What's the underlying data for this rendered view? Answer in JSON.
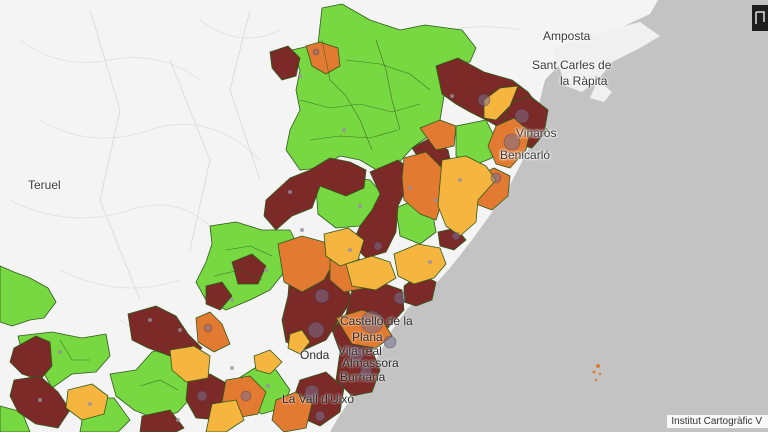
{
  "map": {
    "places": [
      {
        "id": "amposta",
        "label": "Amposta"
      },
      {
        "id": "santcarles1",
        "label": "Sant Carles de"
      },
      {
        "id": "santcarles2",
        "label": "la Ràpita"
      },
      {
        "id": "vinaros",
        "label": "Vinaròs"
      },
      {
        "id": "benicarlo",
        "label": "Benicarló"
      },
      {
        "id": "teruel",
        "label": "Teruel"
      },
      {
        "id": "castello1",
        "label": "Castelló de la"
      },
      {
        "id": "castello2",
        "label": "Plana"
      },
      {
        "id": "onda",
        "label": "Onda"
      },
      {
        "id": "vilareal1",
        "label": "Vila-real"
      },
      {
        "id": "almassora",
        "label": "Almassora"
      },
      {
        "id": "burriana",
        "label": "Burriana"
      },
      {
        "id": "valldiuxo",
        "label": "La Vall d'Uixó"
      }
    ],
    "attribution": "Institut Cartogràfic V",
    "legend_colors": {
      "green": "#77d842",
      "yellow": "#f5b53f",
      "orange": "#e27a32",
      "maroon": "#7b2a27",
      "land": "#f4f4f4",
      "sea": "#c3c3c3"
    }
  }
}
